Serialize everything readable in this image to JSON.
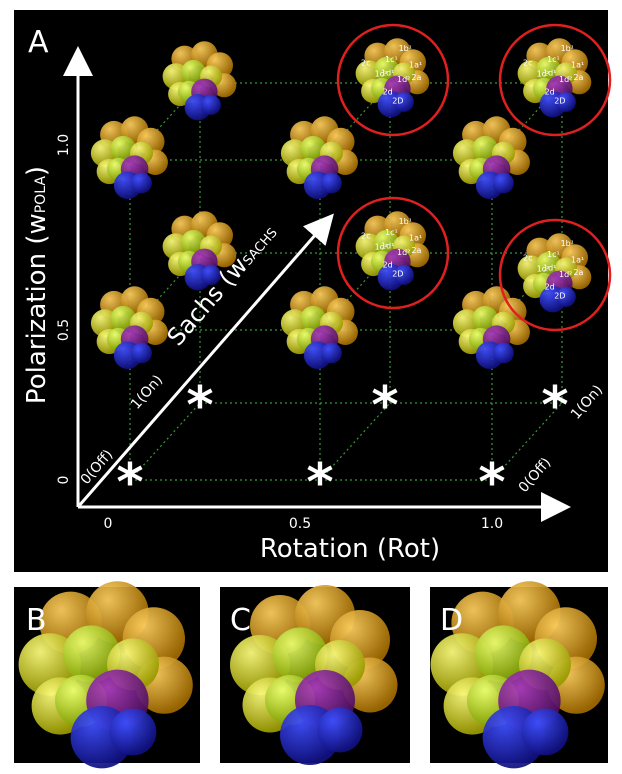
{
  "panels": [
    {
      "label": "A"
    },
    {
      "label": "B"
    },
    {
      "label": "C"
    },
    {
      "label": "D"
    }
  ],
  "axes": {
    "x_title": "Rotation (Rot)",
    "x_ticks": [
      "0",
      "0.5",
      "1.0"
    ],
    "y_title": "Polarization (w",
    "y_title_sub": "POLA",
    "y_title_end": ")",
    "y_ticks": [
      "0",
      "0.5",
      "1.0"
    ],
    "z_title": "Sachs (w",
    "z_title_sub": "SACHS",
    "z_ticks": [
      "0(Off)",
      "1(On)"
    ],
    "x_end_ticks": [
      "0(Off)",
      "1(On)"
    ]
  },
  "marker": "*",
  "cell_labels": [
    "1b¹",
    "1a¹",
    "1c¹",
    "2c",
    "1c²",
    "1d¹",
    "1d²",
    "2a",
    "2d",
    "2D"
  ]
}
